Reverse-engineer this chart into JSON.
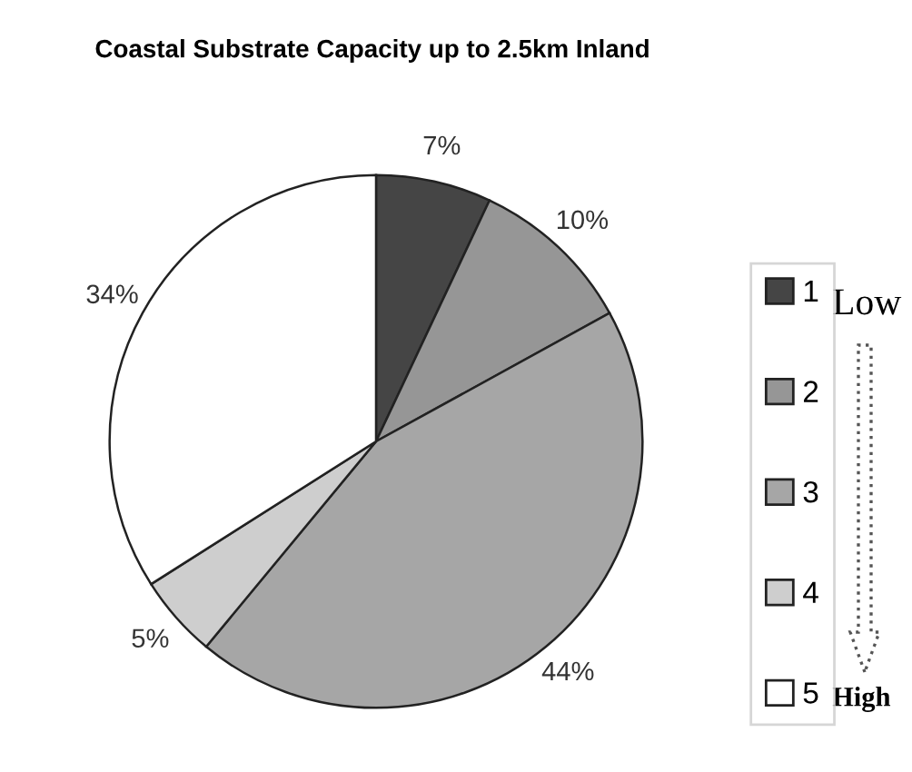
{
  "chart_data": {
    "type": "pie",
    "title": "Coastal Substrate Capacity up to 2.5km Inland",
    "categories": [
      "1",
      "2",
      "3",
      "4",
      "5"
    ],
    "values": [
      7,
      10,
      44,
      5,
      34
    ],
    "value_labels": [
      "7%",
      "10%",
      "44%",
      "5%",
      "34%"
    ],
    "colors": [
      "#454545",
      "#969696",
      "#a6a6a6",
      "#cecece",
      "#ffffff"
    ],
    "legend": "right",
    "annotations": [
      "Low",
      "High"
    ]
  }
}
